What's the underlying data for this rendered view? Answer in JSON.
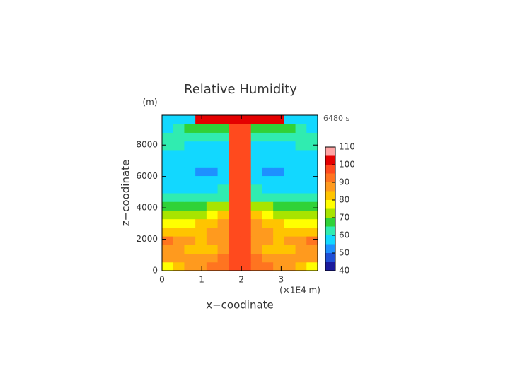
{
  "chart_data": {
    "type": "contour",
    "title": "Relative Humidity",
    "y_unit": "(m)",
    "time_label": "6480 s",
    "ylabel": "z−coodinate",
    "xlabel": "x−coodinate",
    "x_unit": "(×1E4 m)",
    "xlim": [
      0,
      3.92
    ],
    "ylim": [
      0,
      9900
    ],
    "xticks": [
      0,
      1,
      2,
      3
    ],
    "yticks": [
      0,
      2000,
      4000,
      6000,
      8000
    ],
    "values": [
      [
        77,
        80,
        85,
        88,
        90,
        93,
        98,
        98,
        93,
        90,
        88,
        85,
        80,
        77
      ],
      [
        86,
        87,
        86,
        85,
        86,
        90,
        97,
        97,
        90,
        86,
        85,
        86,
        87,
        86
      ],
      [
        88,
        86,
        84,
        83,
        84,
        88,
        98,
        98,
        88,
        84,
        83,
        84,
        86,
        88
      ],
      [
        91,
        88,
        86,
        84,
        86,
        88,
        99,
        99,
        88,
        86,
        84,
        86,
        88,
        91
      ],
      [
        82,
        83,
        84,
        84,
        85,
        87,
        99,
        99,
        87,
        85,
        84,
        84,
        83,
        82
      ],
      [
        76,
        77,
        79,
        80,
        82,
        85,
        99,
        99,
        85,
        82,
        80,
        79,
        77,
        76
      ],
      [
        71,
        72,
        73,
        74,
        77,
        80,
        98,
        98,
        80,
        77,
        74,
        73,
        72,
        71
      ],
      [
        66,
        67,
        68,
        68,
        70,
        72,
        98,
        98,
        72,
        70,
        68,
        68,
        67,
        66
      ],
      [
        62,
        63,
        63,
        62,
        63,
        64,
        97,
        97,
        64,
        63,
        62,
        63,
        63,
        62
      ],
      [
        59,
        59,
        58,
        58,
        58,
        60,
        97,
        97,
        60,
        58,
        58,
        58,
        59,
        59
      ],
      [
        58,
        57,
        57,
        56,
        56,
        58,
        97,
        97,
        58,
        56,
        56,
        57,
        57,
        58
      ],
      [
        58,
        57,
        56,
        54,
        52,
        57,
        97,
        97,
        57,
        52,
        54,
        56,
        57,
        58
      ],
      [
        58,
        57,
        56,
        55,
        55,
        57,
        97,
        97,
        57,
        55,
        55,
        56,
        57,
        58
      ],
      [
        58,
        58,
        57,
        57,
        57,
        58,
        97,
        97,
        58,
        57,
        57,
        57,
        58,
        58
      ],
      [
        61,
        60,
        59,
        58,
        58,
        59,
        98,
        98,
        59,
        58,
        58,
        59,
        60,
        61
      ],
      [
        63,
        62,
        61,
        60,
        61,
        63,
        98,
        98,
        63,
        61,
        60,
        61,
        62,
        63
      ],
      [
        59,
        61,
        66,
        68,
        66,
        68,
        99,
        99,
        68,
        66,
        68,
        66,
        61,
        59
      ],
      [
        57,
        56,
        58,
        102,
        103,
        104,
        104,
        104,
        104,
        103,
        102,
        58,
        56,
        57
      ]
    ],
    "levels": [
      40,
      45,
      50,
      55,
      60,
      65,
      70,
      75,
      80,
      85,
      90,
      95,
      100,
      105,
      110
    ],
    "colors": [
      "#1a1a9c",
      "#1f4fd6",
      "#1e90ff",
      "#12d8ff",
      "#30ecb0",
      "#30d238",
      "#a8e400",
      "#ffff00",
      "#ffc400",
      "#ff9a1e",
      "#ff7420",
      "#ff4a1e",
      "#e40000",
      "#ffa4a4"
    ],
    "colorbar_ticks": [
      40,
      50,
      60,
      70,
      80,
      90,
      100,
      110
    ]
  }
}
